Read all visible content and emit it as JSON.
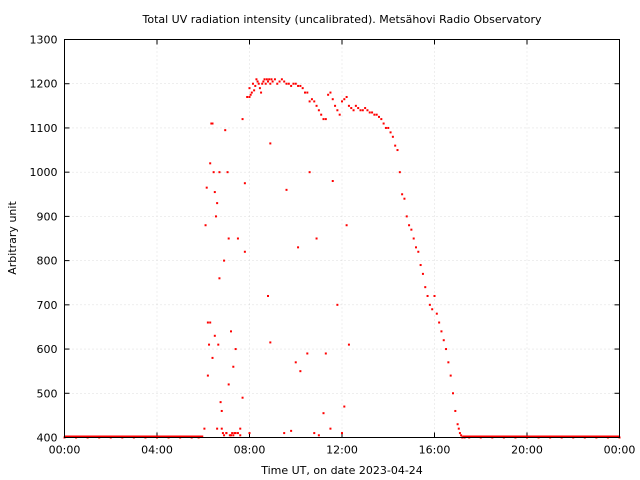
{
  "chart_data": {
    "type": "scatter",
    "title": "Total UV radiation intensity (uncalibrated). Metsähovi Radio Observatory",
    "xlabel": "Time UT, on date 2023-04-24",
    "ylabel": "Arbitrary unit",
    "xlim": [
      0,
      24
    ],
    "ylim": [
      400,
      1300
    ],
    "xticks": [
      0,
      4,
      8,
      12,
      16,
      20,
      24
    ],
    "xtick_labels": [
      "00:00",
      "04:00",
      "08:00",
      "12:00",
      "16:00",
      "20:00",
      "00:00"
    ],
    "yticks": [
      400,
      500,
      600,
      700,
      800,
      900,
      1000,
      1100,
      1200,
      1300
    ],
    "ytick_labels": [
      "400",
      "500",
      "600",
      "700",
      "800",
      "900",
      "1000",
      "1100",
      "1200",
      "1300"
    ],
    "grid": true,
    "marker_color": "#ff0000",
    "series": [
      {
        "x": [
          0.0,
          0.5,
          1.0,
          1.5,
          2.0,
          2.5,
          3.0,
          3.5,
          4.0,
          4.5,
          5.0,
          5.5,
          5.8,
          6.05,
          6.1,
          6.15,
          6.2,
          6.25,
          6.3,
          6.35,
          6.4,
          6.45,
          6.5,
          6.55,
          6.6,
          6.65,
          6.7,
          6.75,
          6.8,
          6.85,
          6.9,
          6.95,
          7.0,
          7.05,
          7.1,
          7.15,
          7.2,
          7.25,
          7.3,
          7.35,
          7.4,
          7.5,
          7.6,
          7.7,
          7.8,
          7.9,
          8.0,
          8.05,
          8.1,
          8.15,
          8.2,
          8.25,
          8.3,
          8.35,
          8.4,
          8.45,
          8.5,
          8.55,
          8.6,
          8.65,
          8.7,
          8.75,
          8.8,
          8.85,
          8.9,
          8.95,
          9.0,
          9.1,
          9.2,
          9.3,
          9.4,
          9.5,
          9.6,
          9.7,
          9.8,
          9.9,
          10.0,
          10.1,
          10.2,
          10.3,
          10.4,
          10.5,
          10.6,
          10.7,
          10.8,
          10.9,
          11.0,
          11.1,
          11.2,
          11.3,
          11.4,
          11.5,
          11.6,
          11.7,
          11.8,
          11.9,
          12.0,
          12.1,
          12.2,
          12.3,
          12.4,
          12.5,
          12.6,
          12.7,
          12.8,
          12.9,
          13.0,
          13.1,
          13.2,
          13.3,
          13.4,
          13.5,
          13.6,
          13.7,
          13.8,
          13.9,
          14.0,
          14.1,
          14.2,
          14.3,
          14.4,
          14.5,
          14.6,
          14.7,
          14.8,
          14.9,
          15.0,
          15.1,
          15.2,
          15.3,
          15.4,
          15.5,
          15.6,
          15.7,
          15.8,
          15.9,
          16.0,
          16.1,
          16.2,
          16.3,
          16.4,
          16.5,
          16.6,
          16.7,
          16.8,
          16.9,
          17.0,
          17.05,
          17.1,
          17.15,
          17.2,
          17.3,
          17.5,
          18.0,
          18.5,
          19.0,
          19.5,
          20.0,
          20.5,
          21.0,
          21.5,
          22.0,
          22.5,
          23.0,
          23.5,
          24.0,
          6.2,
          6.4,
          6.6,
          6.8,
          7.0,
          7.2,
          7.4,
          7.6,
          7.8,
          8.0,
          8.8,
          8.9,
          9.5,
          9.8,
          10.0,
          10.2,
          10.5,
          10.8,
          11.0,
          11.2,
          11.5,
          11.8,
          12.0,
          12.3,
          6.3,
          6.5,
          6.7,
          6.9,
          7.1,
          7.3,
          7.5,
          7.7,
          8.0,
          8.9,
          9.6,
          10.1,
          10.6,
          10.9,
          11.3,
          11.6,
          12.1,
          12.2
        ],
        "y": [
          400,
          400,
          400,
          400,
          400,
          400,
          400,
          400,
          400,
          400,
          400,
          400,
          400,
          420,
          880,
          965,
          660,
          610,
          1020,
          1110,
          1110,
          1000,
          955,
          900,
          930,
          610,
          1000,
          480,
          420,
          410,
          405,
          1095,
          410,
          1000,
          850,
          405,
          405,
          410,
          405,
          410,
          410,
          410,
          420,
          1120,
          975,
          1170,
          1190,
          1175,
          1180,
          1200,
          1185,
          1195,
          1210,
          1205,
          1200,
          1190,
          1180,
          1200,
          1205,
          1210,
          1200,
          1210,
          1205,
          1210,
          1200,
          1210,
          1205,
          1210,
          1200,
          1205,
          1210,
          1205,
          1200,
          1200,
          1195,
          1200,
          1200,
          1195,
          1195,
          1190,
          1180,
          1180,
          1160,
          1165,
          1160,
          1150,
          1140,
          1130,
          1120,
          1120,
          1175,
          1180,
          1165,
          1150,
          1140,
          1130,
          1160,
          1165,
          1170,
          1150,
          1145,
          1140,
          1150,
          1145,
          1140,
          1140,
          1145,
          1140,
          1135,
          1135,
          1130,
          1130,
          1125,
          1120,
          1110,
          1100,
          1100,
          1090,
          1080,
          1060,
          1050,
          1000,
          950,
          940,
          900,
          880,
          870,
          850,
          830,
          820,
          790,
          770,
          740,
          720,
          700,
          690,
          720,
          680,
          660,
          640,
          620,
          600,
          570,
          540,
          500,
          460,
          430,
          420,
          410,
          405,
          400,
          400,
          400,
          400,
          400,
          400,
          400,
          400,
          400,
          400,
          400,
          400,
          400,
          400,
          400,
          400,
          540,
          580,
          420,
          460,
          410,
          640,
          600,
          405,
          820,
          410,
          720,
          615,
          410,
          415,
          570,
          550,
          590,
          410,
          405,
          455,
          420,
          700,
          410,
          610,
          660,
          630,
          760,
          800,
          520,
          560,
          850,
          490,
          1170,
          1065,
          960,
          830,
          1000,
          850,
          590,
          980,
          470,
          880
        ]
      }
    ]
  }
}
